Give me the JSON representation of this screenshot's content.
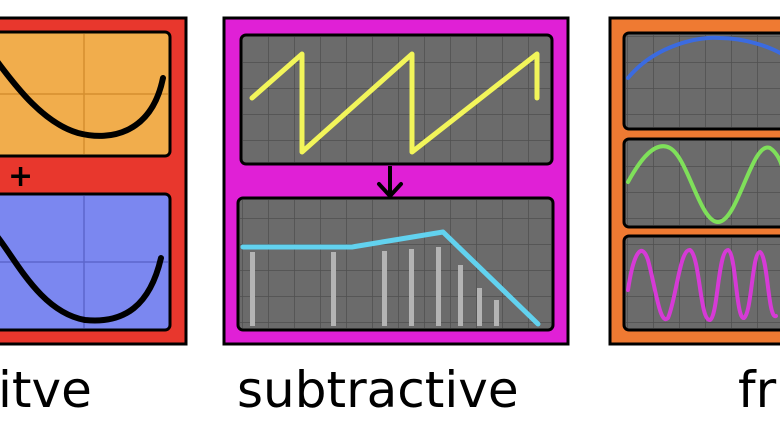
{
  "panels": {
    "additive": {
      "caption": "itve",
      "operator": "+",
      "frame_color": "#e8372d",
      "top_screen_color": "#f1ad4c",
      "bottom_screen_color": "#7b87f0",
      "wave_color": "#000000"
    },
    "subtractive": {
      "caption": "subtractive",
      "frame_color": "#e020d6",
      "screen_color": "#6b6b6b",
      "sawtooth_color": "#f2f55a",
      "filter_curve_color": "#62d2ef",
      "harmonic_bar_color": "#b4b4b4",
      "arrow_direction": "down"
    },
    "fm": {
      "caption": "fr",
      "frame_color": "#ef7a32",
      "screen_color": "#6b6b6b",
      "carrier_color": "#3b6be0",
      "modulator_color": "#7fe05a",
      "output_color": "#d63ad6"
    }
  }
}
